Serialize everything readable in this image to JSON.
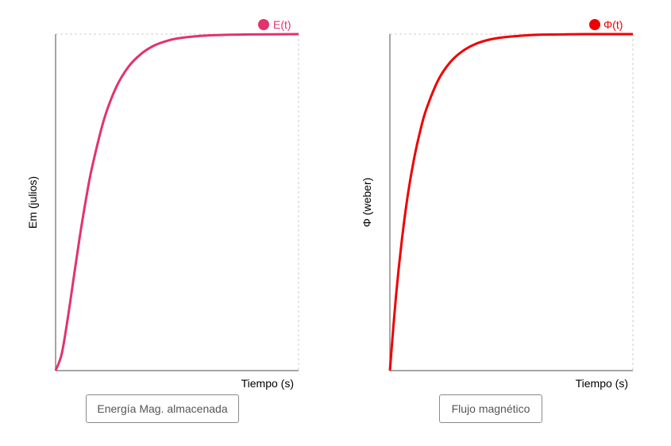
{
  "buttons": {
    "energy": "Energía Mag. almacenada",
    "flux": "Flujo magnético"
  },
  "chart_data": [
    {
      "type": "line",
      "series": [
        {
          "name": "E(t)",
          "color": "#e2336b",
          "x": [
            0,
            0.25,
            0.5,
            0.75,
            1,
            1.25,
            1.5,
            2,
            2.5,
            3,
            3.5,
            4,
            4.5,
            5,
            6,
            7,
            8,
            10
          ],
          "y": [
            0,
            0.049,
            0.155,
            0.278,
            0.4,
            0.509,
            0.604,
            0.748,
            0.843,
            0.903,
            0.94,
            0.964,
            0.978,
            0.987,
            0.995,
            0.998,
            0.999,
            1.0
          ]
        }
      ],
      "xlabel": "Tiempo (s)",
      "ylabel": "Em (julios)",
      "xlim": [
        0,
        10
      ],
      "ylim": [
        0,
        1
      ],
      "grid": false,
      "legend": "top-right"
    },
    {
      "type": "line",
      "series": [
        {
          "name": "Φ(t)",
          "color": "#f00000",
          "x": [
            0,
            0.25,
            0.5,
            0.75,
            1,
            1.25,
            1.5,
            2,
            2.5,
            3,
            3.5,
            4,
            4.5,
            5,
            6,
            7,
            8,
            10
          ],
          "y": [
            0,
            0.221,
            0.393,
            0.528,
            0.632,
            0.713,
            0.777,
            0.865,
            0.918,
            0.95,
            0.97,
            0.982,
            0.989,
            0.993,
            0.998,
            0.999,
            1.0,
            1.0
          ]
        }
      ],
      "xlabel": "Tiempo (s)",
      "ylabel": "Φ (weber)",
      "xlim": [
        0,
        10
      ],
      "ylim": [
        0,
        1
      ],
      "grid": false,
      "legend": "top-right"
    }
  ]
}
